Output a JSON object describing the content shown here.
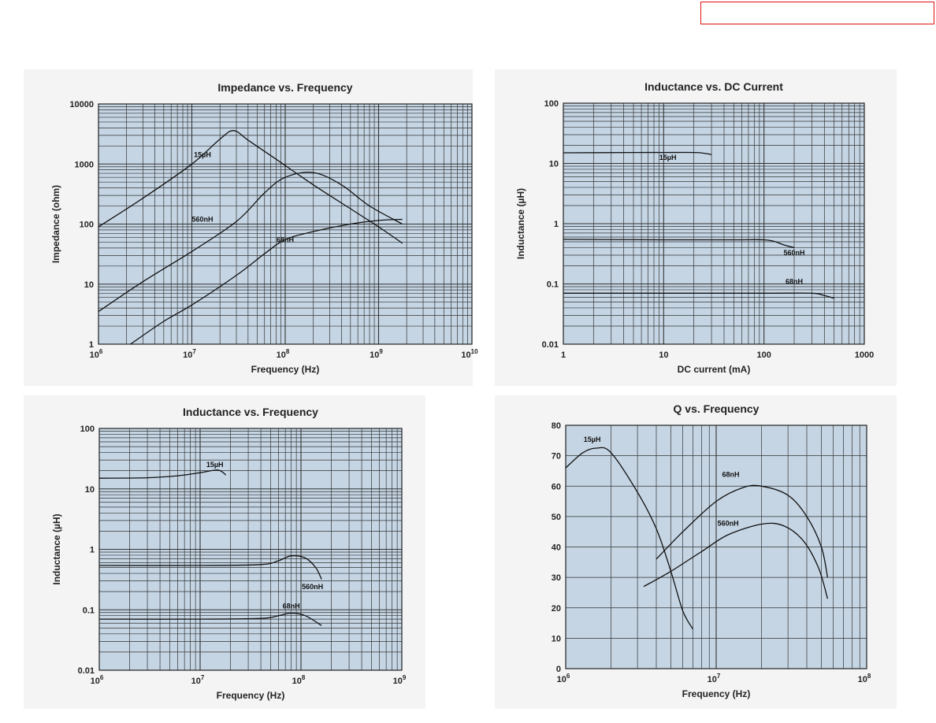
{
  "header": {
    "stamp_box_color": "#e01010"
  },
  "colors": {
    "plot_bg": "#c5d5e4",
    "grid": "#333333",
    "line": "#111111",
    "panel_bg": "#f4f4f4"
  },
  "chart_data": [
    {
      "type": "line",
      "title": "Impedance vs. Frequency",
      "xlabel": "Frequency (Hz)",
      "ylabel": "Impedance (ohm)",
      "xscale": "log",
      "yscale": "log",
      "xlim": [
        1000000,
        10000000000
      ],
      "ylim": [
        1,
        10000
      ],
      "x_ticks": [
        {
          "value": 1000000,
          "base": "10",
          "exp": "6"
        },
        {
          "value": 10000000,
          "base": "10",
          "exp": "7"
        },
        {
          "value": 100000000,
          "base": "10",
          "exp": "8"
        },
        {
          "value": 1000000000,
          "base": "10",
          "exp": "9"
        },
        {
          "value": 10000000000,
          "base": "10",
          "exp": "10"
        }
      ],
      "y_ticks": [
        {
          "value": 1,
          "label": "1"
        },
        {
          "value": 10,
          "label": "10"
        },
        {
          "value": 100,
          "label": "100"
        },
        {
          "value": 1000,
          "label": "1000"
        },
        {
          "value": 10000,
          "label": "10000"
        }
      ],
      "grid": true,
      "series": [
        {
          "name": "15µH",
          "x": [
            1000000,
            3000000,
            10000000,
            20000000,
            28000000,
            40000000,
            80000000,
            200000000,
            500000000,
            1000000000,
            1800000000
          ],
          "y": [
            90,
            270,
            1000,
            2600,
            3600,
            2500,
            1200,
            450,
            180,
            90,
            48
          ]
        },
        {
          "name": "560nH",
          "x": [
            1000000,
            3000000,
            10000000,
            30000000,
            60000000,
            100000000,
            200000000,
            400000000,
            800000000,
            1800000000
          ],
          "y": [
            3.5,
            11,
            35,
            110,
            330,
            600,
            720,
            450,
            200,
            100
          ]
        },
        {
          "name": "68nH",
          "x": [
            2200000,
            5000000,
            10000000,
            30000000,
            60000000,
            100000000,
            200000000,
            500000000,
            1000000000,
            1800000000
          ],
          "y": [
            1,
            2.4,
            4.5,
            14,
            32,
            55,
            75,
            100,
            115,
            120
          ]
        }
      ],
      "annotations": [
        {
          "text": "15µH",
          "x": 13000000,
          "y": 1300
        },
        {
          "text": "560nH",
          "x": 13000000,
          "y": 110
        },
        {
          "text": "68nH",
          "x": 100000000,
          "y": 50
        }
      ]
    },
    {
      "type": "line",
      "title": "Inductance vs. DC Current",
      "xlabel": "DC current (mA)",
      "ylabel": "Inductance (µH)",
      "xscale": "log",
      "yscale": "log",
      "xlim": [
        1,
        1000
      ],
      "ylim": [
        0.01,
        100
      ],
      "x_ticks": [
        {
          "value": 1,
          "label": "1"
        },
        {
          "value": 10,
          "label": "10"
        },
        {
          "value": 100,
          "label": "100"
        },
        {
          "value": 1000,
          "label": "1000"
        }
      ],
      "y_ticks": [
        {
          "value": 0.01,
          "label": "0.01"
        },
        {
          "value": 0.1,
          "label": "0.1"
        },
        {
          "value": 1,
          "label": "1"
        },
        {
          "value": 10,
          "label": "10"
        },
        {
          "value": 100,
          "label": "100"
        }
      ],
      "grid": true,
      "series": [
        {
          "name": "15µH",
          "x": [
            1,
            5,
            10,
            20,
            25,
            30
          ],
          "y": [
            15,
            15.2,
            15.2,
            15.2,
            14.8,
            14
          ]
        },
        {
          "name": "560nH",
          "x": [
            1,
            10,
            50,
            100,
            130,
            160,
            200
          ],
          "y": [
            0.55,
            0.54,
            0.54,
            0.54,
            0.5,
            0.44,
            0.4
          ]
        },
        {
          "name": "68nH",
          "x": [
            1,
            10,
            100,
            300,
            400,
            500
          ],
          "y": [
            0.07,
            0.07,
            0.07,
            0.07,
            0.064,
            0.058
          ]
        }
      ],
      "annotations": [
        {
          "text": "15µH",
          "x": 11,
          "y": 11.5
        },
        {
          "text": "560nH",
          "x": 200,
          "y": 0.3
        },
        {
          "text": "68nH",
          "x": 200,
          "y": 0.1
        }
      ]
    },
    {
      "type": "line",
      "title": "Inductance vs. Frequency",
      "xlabel": "Frequency (Hz)",
      "ylabel": "Inductance (µH)",
      "xscale": "log",
      "yscale": "log",
      "xlim": [
        1000000,
        1000000000
      ],
      "ylim": [
        0.01,
        100
      ],
      "x_ticks": [
        {
          "value": 1000000,
          "base": "10",
          "exp": "6"
        },
        {
          "value": 10000000,
          "base": "10",
          "exp": "7"
        },
        {
          "value": 100000000,
          "base": "10",
          "exp": "8"
        },
        {
          "value": 1000000000,
          "base": "10",
          "exp": "9"
        }
      ],
      "y_ticks": [
        {
          "value": 0.01,
          "label": "0.01"
        },
        {
          "value": 0.1,
          "label": "0.1"
        },
        {
          "value": 1,
          "label": "1"
        },
        {
          "value": 10,
          "label": "10"
        },
        {
          "value": 100,
          "label": "100"
        }
      ],
      "grid": true,
      "series": [
        {
          "name": "15µH",
          "x": [
            1000000,
            3000000,
            6000000,
            10000000,
            15000000,
            18000000
          ],
          "y": [
            15,
            15.3,
            16.5,
            18.5,
            20.5,
            17
          ]
        },
        {
          "name": "560nH",
          "x": [
            1000000,
            10000000,
            40000000,
            60000000,
            80000000,
            110000000,
            140000000,
            160000000
          ],
          "y": [
            0.54,
            0.54,
            0.56,
            0.65,
            0.78,
            0.72,
            0.5,
            0.32
          ]
        },
        {
          "name": "68nH",
          "x": [
            1000000,
            10000000,
            40000000,
            60000000,
            80000000,
            110000000,
            160000000
          ],
          "y": [
            0.07,
            0.07,
            0.072,
            0.08,
            0.088,
            0.08,
            0.055
          ]
        }
      ],
      "annotations": [
        {
          "text": "15µH",
          "x": 14000000,
          "y": 23
        },
        {
          "text": "560nH",
          "x": 130000000,
          "y": 0.22
        },
        {
          "text": "68nH",
          "x": 80000000,
          "y": 0.105
        }
      ]
    },
    {
      "type": "line",
      "title": "Q vs. Frequency",
      "xlabel": "Frequency (Hz)",
      "ylabel": "",
      "xscale": "log",
      "yscale": "linear",
      "xlim": [
        1000000,
        100000000
      ],
      "ylim": [
        0,
        80
      ],
      "x_ticks": [
        {
          "value": 1000000,
          "base": "10",
          "exp": "6"
        },
        {
          "value": 10000000,
          "base": "10",
          "exp": "7"
        },
        {
          "value": 100000000,
          "base": "10",
          "exp": "8"
        }
      ],
      "y_ticks": [
        {
          "value": 0,
          "label": "0"
        },
        {
          "value": 10,
          "label": "10"
        },
        {
          "value": 20,
          "label": "20"
        },
        {
          "value": 30,
          "label": "30"
        },
        {
          "value": 40,
          "label": "40"
        },
        {
          "value": 50,
          "label": "50"
        },
        {
          "value": 60,
          "label": "60"
        },
        {
          "value": 70,
          "label": "70"
        },
        {
          "value": 80,
          "label": "80"
        }
      ],
      "grid": true,
      "series": [
        {
          "name": "15µH",
          "x": [
            1000000,
            1300000,
            1600000,
            2000000,
            3000000,
            4000000,
            5000000,
            6000000,
            7000000
          ],
          "y": [
            66,
            71,
            72.5,
            71,
            58,
            46,
            32,
            19,
            13
          ]
        },
        {
          "name": "68nH",
          "x": [
            4000000,
            6000000,
            10000000,
            15000000,
            20000000,
            30000000,
            40000000,
            50000000,
            55000000
          ],
          "y": [
            36,
            45,
            55,
            59.5,
            60,
            57,
            50,
            40,
            30
          ]
        },
        {
          "name": "560nH",
          "x": [
            3300000,
            5000000,
            8000000,
            12000000,
            20000000,
            28000000,
            38000000,
            48000000,
            55000000
          ],
          "y": [
            27,
            32,
            38.5,
            44,
            47.5,
            47,
            42,
            33,
            23
          ]
        }
      ],
      "annotations": [
        {
          "text": "15µH",
          "x": 1500000,
          "y": 74.5
        },
        {
          "text": "68nH",
          "x": 12500000,
          "y": 63
        },
        {
          "text": "560nH",
          "x": 12000000,
          "y": 47
        }
      ]
    }
  ]
}
